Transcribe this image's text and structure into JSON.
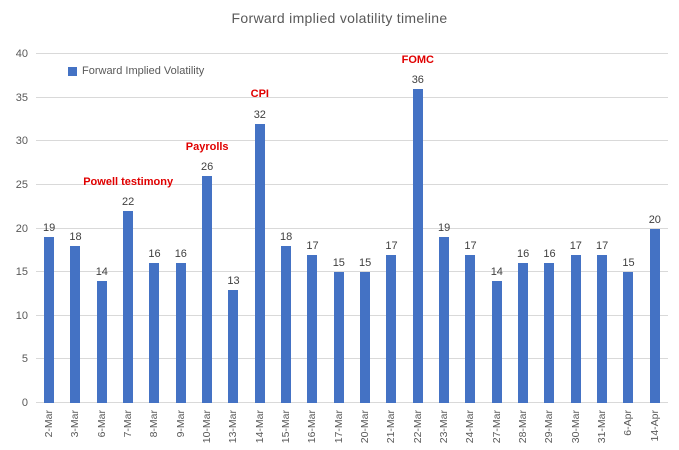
{
  "chart_data": {
    "type": "bar",
    "title": "Forward implied volatility timeline",
    "categories": [
      "2-Mar",
      "3-Mar",
      "6-Mar",
      "7-Mar",
      "8-Mar",
      "9-Mar",
      "10-Mar",
      "13-Mar",
      "14-Mar",
      "15-Mar",
      "16-Mar",
      "17-Mar",
      "20-Mar",
      "21-Mar",
      "22-Mar",
      "23-Mar",
      "24-Mar",
      "27-Mar",
      "28-Mar",
      "29-Mar",
      "30-Mar",
      "31-Mar",
      "6-Apr",
      "14-Apr"
    ],
    "series": [
      {
        "name": "Forward Implied Volatility",
        "values": [
          19,
          18,
          14,
          22,
          16,
          16,
          26,
          13,
          32,
          18,
          17,
          15,
          15,
          17,
          36,
          19,
          17,
          14,
          16,
          16,
          17,
          17,
          15,
          20
        ]
      }
    ],
    "annotations": [
      {
        "category": "7-Mar",
        "text": "Powell testimony"
      },
      {
        "category": "10-Mar",
        "text": "Payrolls"
      },
      {
        "category": "14-Mar",
        "text": "CPI"
      },
      {
        "category": "22-Mar",
        "text": "FOMC"
      }
    ],
    "xlabel": "",
    "ylabel": "",
    "ylim": [
      0,
      40
    ],
    "ytick_step": 5,
    "yticks": [
      0,
      5,
      10,
      15,
      20,
      25,
      30,
      35,
      40
    ],
    "grid": "horizontal",
    "data_labels": true,
    "legend_position": "top-left-inside"
  },
  "colors": {
    "bar": "#4472C4",
    "gridline": "#D9D9D9",
    "axis_text": "#595959",
    "data_label": "#404040",
    "annotation": "#E00000",
    "title_text": "#595959",
    "background": "#FFFFFF"
  }
}
